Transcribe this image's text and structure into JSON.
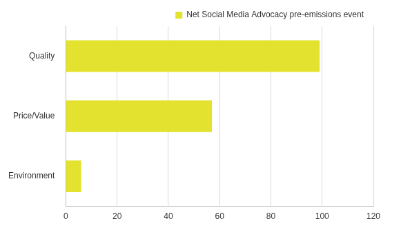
{
  "chart_data": {
    "type": "bar",
    "orientation": "horizontal",
    "categories": [
      "Quality",
      "Price/Value",
      "Environment"
    ],
    "series": [
      {
        "name": "Net Social Media Advocacy pre-emissions event",
        "color": "#e3e22e",
        "values": [
          99,
          57,
          6
        ]
      }
    ],
    "xlim": [
      0,
      120
    ],
    "xticks": [
      0,
      20,
      40,
      60,
      80,
      100,
      120
    ],
    "grid": true,
    "legend": "top-right"
  }
}
